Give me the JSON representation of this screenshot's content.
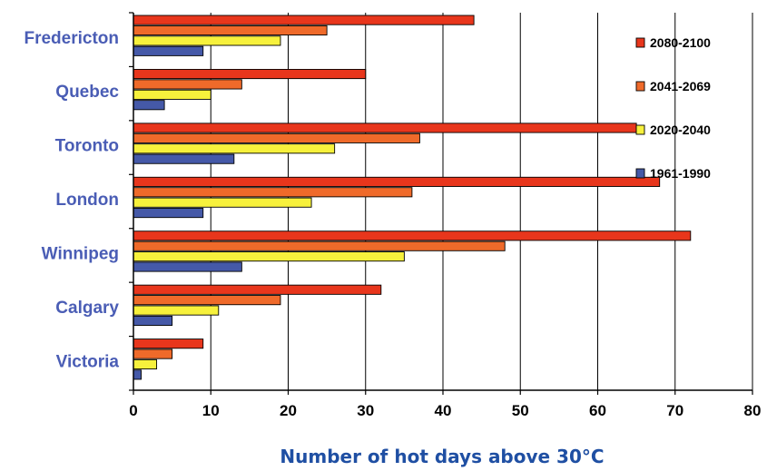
{
  "chart_data": {
    "type": "bar",
    "orientation": "horizontal",
    "categories": [
      "Fredericton",
      "Quebec",
      "Toronto",
      "London",
      "Winnipeg",
      "Calgary",
      "Victoria"
    ],
    "series": [
      {
        "name": "2080-2100",
        "color": "#e8361c",
        "values": [
          44,
          30,
          65,
          68,
          72,
          32,
          9
        ]
      },
      {
        "name": "2041-2069",
        "color": "#ef6a2a",
        "values": [
          25,
          14,
          37,
          36,
          48,
          19,
          5
        ]
      },
      {
        "name": "2020-2040",
        "color": "#f7f13c",
        "values": [
          19,
          10,
          26,
          23,
          35,
          11,
          3
        ]
      },
      {
        "name": "1961-1990",
        "color": "#4559a8",
        "values": [
          9,
          4,
          13,
          9,
          14,
          5,
          1
        ]
      }
    ],
    "xlabel": "Number of hot days above 30°C",
    "ylabel": "",
    "xlim": [
      0,
      80
    ],
    "xticks": [
      0,
      10,
      20,
      30,
      40,
      50,
      60,
      70,
      80
    ],
    "grid": "vertical",
    "legend_placement": "right"
  }
}
